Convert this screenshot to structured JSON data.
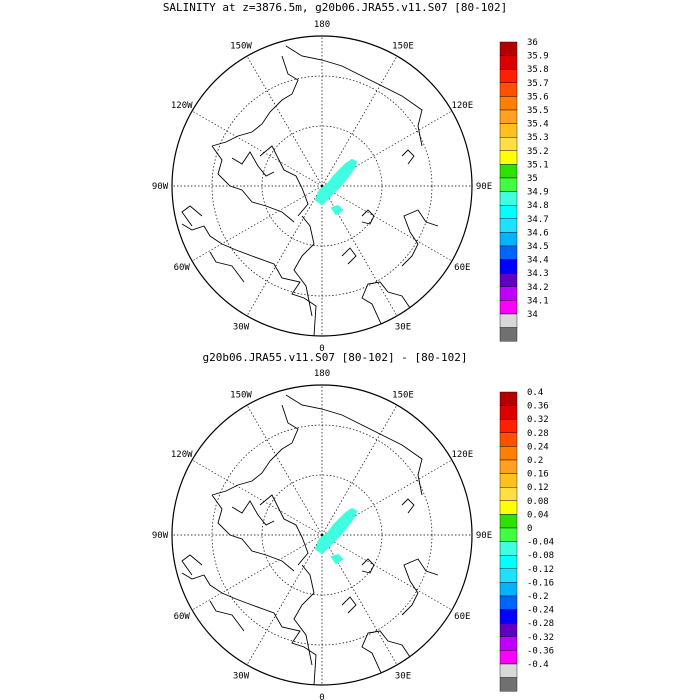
{
  "panels": [
    {
      "title": "SALINITY at z=3876.5m, g20b06.JRA55.v11.S07 [80-102]",
      "colorbar": {
        "labels": [
          "36",
          "35.9",
          "35.8",
          "35.7",
          "35.6",
          "35.5",
          "35.4",
          "35.3",
          "35.2",
          "35.1",
          "35",
          "34.9",
          "34.8",
          "34.7",
          "34.6",
          "34.5",
          "34.4",
          "34.3",
          "34.2",
          "34.1",
          "34"
        ],
        "colors": [
          "#b40000",
          "#dc0000",
          "#ff2000",
          "#ff5000",
          "#ff8000",
          "#ffa020",
          "#ffc020",
          "#ffe040",
          "#ffff00",
          "#30e000",
          "#40ff40",
          "#40ffe0",
          "#00ffff",
          "#20e0ff",
          "#00b4ff",
          "#0064ff",
          "#0000ff",
          "#6000c0",
          "#c000ff",
          "#ff00ff",
          "#d8d8d8",
          "#707070"
        ]
      }
    },
    {
      "title": "g20b06.JRA55.v11.S07 [80-102] -  [80-102]",
      "colorbar": {
        "labels": [
          "0.4",
          "0.36",
          "0.32",
          "0.28",
          "0.24",
          "0.2",
          "0.16",
          "0.12",
          "0.08",
          "0.04",
          "0",
          "-0.04",
          "-0.08",
          "-0.12",
          "-0.16",
          "-0.2",
          "-0.24",
          "-0.28",
          "-0.32",
          "-0.36",
          "-0.4"
        ],
        "colors": [
          "#b40000",
          "#dc0000",
          "#ff2000",
          "#ff5000",
          "#ff8000",
          "#ffa020",
          "#ffc020",
          "#ffe040",
          "#ffff00",
          "#30e000",
          "#40ff40",
          "#40ffe0",
          "#00ffff",
          "#20e0ff",
          "#00b4ff",
          "#0064ff",
          "#0000ff",
          "#6000c0",
          "#c000ff",
          "#ff00ff",
          "#d8d8d8",
          "#707070"
        ]
      }
    }
  ],
  "longitude_labels": {
    "top": "180",
    "upper_left": "150W",
    "upper_right": "150E",
    "mid_upper_left": "120W",
    "mid_upper_right": "120E",
    "left": "90W",
    "right": "90E",
    "mid_lower_left": "60W",
    "mid_lower_right": "60E",
    "lower_left": "30W",
    "lower_right": "30E",
    "bottom": "0"
  },
  "anomaly_color": "#40ffe0"
}
